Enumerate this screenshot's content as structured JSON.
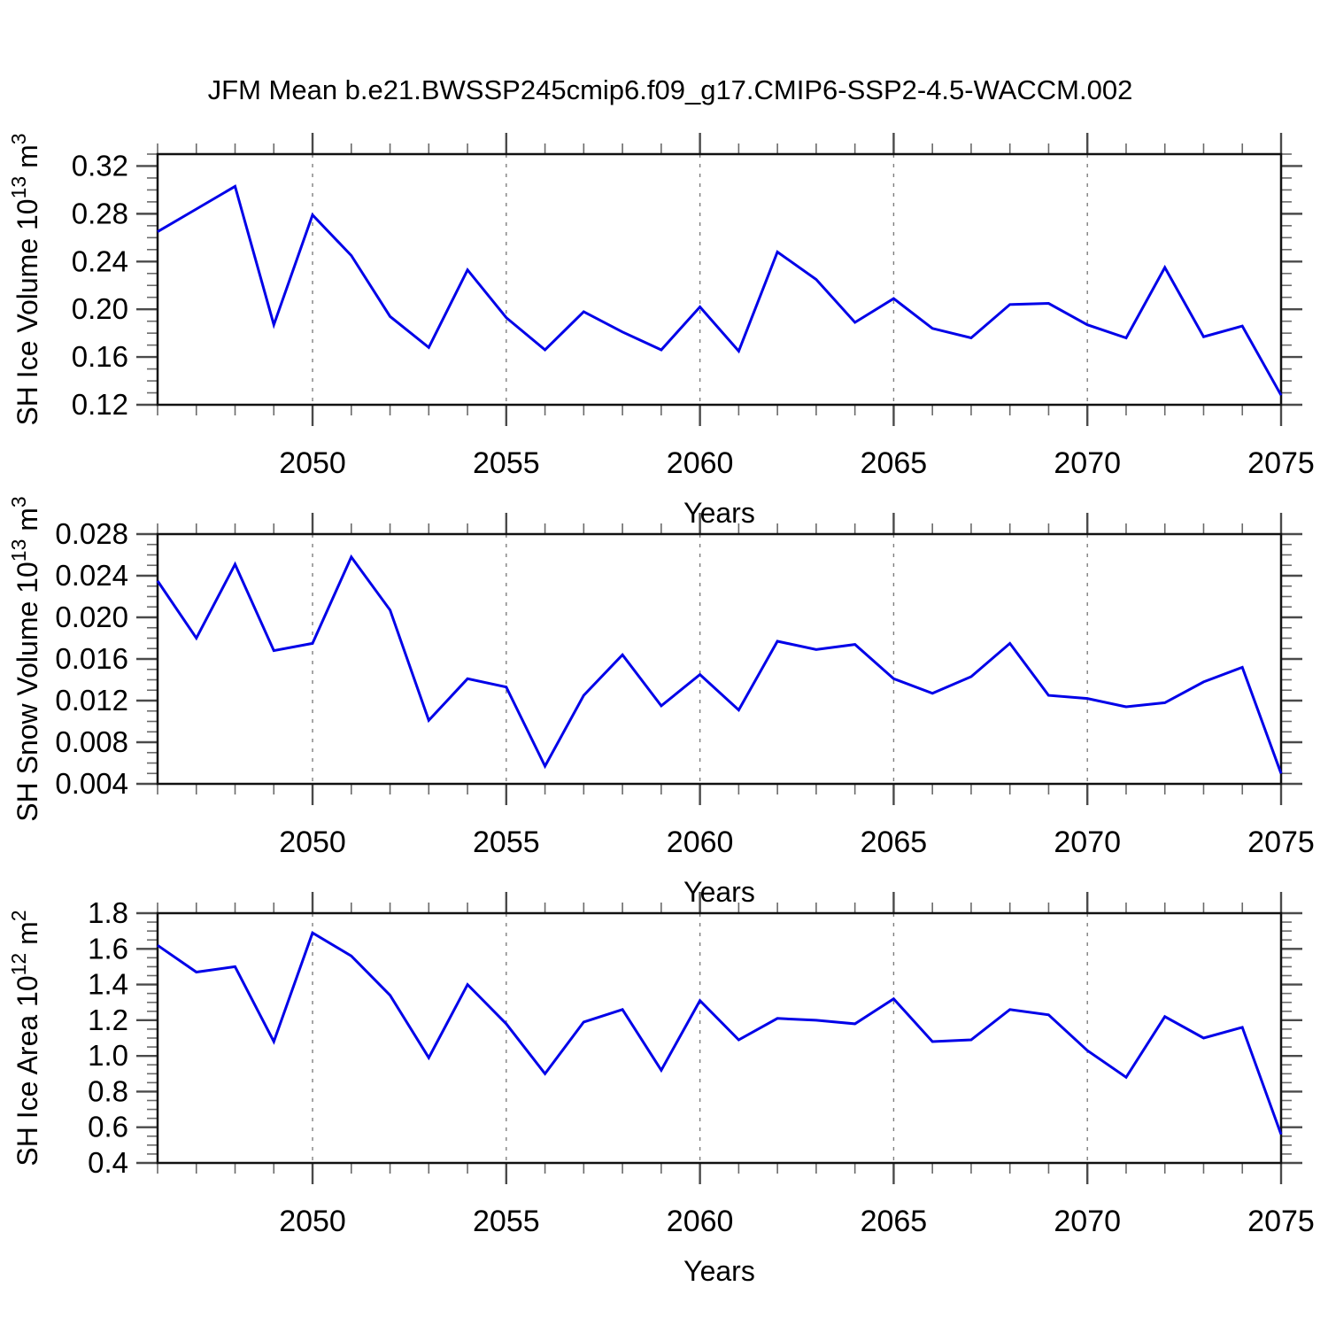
{
  "title": "JFM Mean b.e21.BWSSP245cmip6.f09_g17.CMIP6-SSP2-4.5-WACCM.002",
  "colors": {
    "line": "#0000e8",
    "frame": "#111111",
    "major_tick": "#4a4a4a",
    "minor_tick": "#6a6a6a",
    "grid": "#7f7f7f",
    "text": "#000000",
    "background": "#ffffff"
  },
  "x_axis": {
    "label": "Years",
    "min": 2046,
    "max": 2075,
    "major_ticks": [
      2050,
      2055,
      2060,
      2065,
      2070,
      2075
    ],
    "major_tick_labels": [
      "2050",
      "2055",
      "2060",
      "2065",
      "2070",
      "2075"
    ],
    "grid_years": [
      2050,
      2055,
      2060,
      2065,
      2070
    ],
    "minor_step": 1
  },
  "years": [
    2046,
    2047,
    2048,
    2049,
    2050,
    2051,
    2052,
    2053,
    2054,
    2055,
    2056,
    2057,
    2058,
    2059,
    2060,
    2061,
    2062,
    2063,
    2064,
    2065,
    2066,
    2067,
    2068,
    2069,
    2070,
    2071,
    2072,
    2073,
    2074,
    2075
  ],
  "chart_data": [
    {
      "type": "line",
      "name": "sh-ice-volume",
      "ylabel": {
        "prefix": "SH Ice Volume 10",
        "exp": "13",
        "unit": " m",
        "unit_exp": "3"
      },
      "ylim": [
        0.12,
        0.33
      ],
      "yticks": [
        0.12,
        0.16,
        0.2,
        0.24,
        0.28,
        0.32
      ],
      "ytick_labels": [
        "0.12",
        "0.16",
        "0.20",
        "0.24",
        "0.28",
        "0.32"
      ],
      "minor_step": 0.01,
      "values": [
        0.265,
        0.284,
        0.303,
        0.187,
        0.279,
        0.245,
        0.194,
        0.168,
        0.233,
        0.193,
        0.166,
        0.198,
        0.181,
        0.166,
        0.202,
        0.165,
        0.248,
        0.225,
        0.189,
        0.209,
        0.184,
        0.176,
        0.204,
        0.205,
        0.187,
        0.176,
        0.235,
        0.177,
        0.186,
        0.128
      ]
    },
    {
      "type": "line",
      "name": "sh-snow-volume",
      "ylabel": {
        "prefix": "SH Snow Volume 10",
        "exp": "13",
        "unit": " m",
        "unit_exp": "3"
      },
      "ylim": [
        0.004,
        0.028
      ],
      "yticks": [
        0.004,
        0.008,
        0.012,
        0.016,
        0.02,
        0.024,
        0.028
      ],
      "ytick_labels": [
        "0.004",
        "0.008",
        "0.012",
        "0.016",
        "0.020",
        "0.024",
        "0.028"
      ],
      "minor_step": 0.001,
      "values": [
        0.0235,
        0.018,
        0.0251,
        0.0168,
        0.0175,
        0.0258,
        0.0207,
        0.0101,
        0.0141,
        0.0133,
        0.0057,
        0.0125,
        0.0164,
        0.0115,
        0.0145,
        0.0111,
        0.0177,
        0.0169,
        0.0174,
        0.0141,
        0.0127,
        0.0143,
        0.0175,
        0.0125,
        0.0122,
        0.0114,
        0.0118,
        0.0138,
        0.0152,
        0.005
      ]
    },
    {
      "type": "line",
      "name": "sh-ice-area",
      "ylabel": {
        "prefix": "SH Ice Area 10",
        "exp": "12",
        "unit": " m",
        "unit_exp": "2"
      },
      "ylim": [
        0.4,
        1.8
      ],
      "yticks": [
        0.4,
        0.6,
        0.8,
        1.0,
        1.2,
        1.4,
        1.6,
        1.8
      ],
      "ytick_labels": [
        "0.4",
        "0.6",
        "0.8",
        "1.0",
        "1.2",
        "1.4",
        "1.6",
        "1.8"
      ],
      "minor_step": 0.05,
      "values": [
        1.62,
        1.47,
        1.5,
        1.08,
        1.69,
        1.56,
        1.34,
        0.99,
        1.4,
        1.18,
        0.9,
        1.19,
        1.26,
        0.92,
        1.31,
        1.09,
        1.21,
        1.2,
        1.18,
        1.32,
        1.08,
        1.09,
        1.26,
        1.23,
        1.03,
        0.88,
        1.22,
        1.1,
        1.16,
        0.56
      ]
    }
  ]
}
